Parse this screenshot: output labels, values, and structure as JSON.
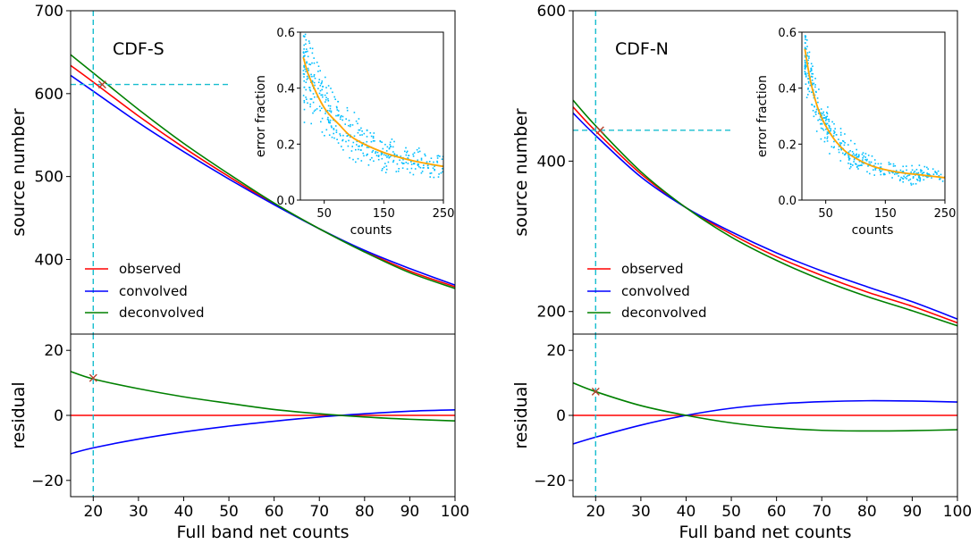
{
  "chart_data": [
    {
      "panel": "CDF-S",
      "type": "line",
      "main": {
        "label": "CDF-S",
        "ylabel": "source number",
        "xlim": [
          15,
          100
        ],
        "ylim": [
          310,
          700
        ],
        "yticks": [
          400,
          500,
          600,
          700
        ],
        "series": [
          {
            "name": "observed",
            "color": "#ff0000",
            "x": [
              15,
              20,
              30,
              40,
              50,
              60,
              70,
              80,
              90,
              100
            ],
            "y": [
              634,
              614,
              573,
              535,
              500,
              467,
              437,
              410,
              386,
              367
            ]
          },
          {
            "name": "convolved",
            "color": "#0000ff",
            "x": [
              15,
              20,
              30,
              40,
              50,
              60,
              70,
              80,
              90,
              100
            ],
            "y": [
              622,
              603,
              565,
              530,
              497,
              466,
              437,
              411,
              389,
              369
            ]
          },
          {
            "name": "deconvolved",
            "color": "#008000",
            "x": [
              15,
              20,
              30,
              40,
              50,
              60,
              70,
              80,
              90,
              100
            ],
            "y": [
              647,
              625,
              581,
              540,
              503,
              468,
              437,
              409,
              384,
              365
            ]
          }
        ],
        "marker": {
          "x": 22,
          "y": 611
        },
        "vline_x": 20,
        "hline": {
          "y": 611,
          "x_from": 15,
          "x_to": 50
        },
        "legend_location": "lower-left"
      },
      "inset": {
        "xlabel": "counts",
        "ylabel": "error fraction",
        "xlim": [
          10,
          250
        ],
        "ylim": [
          0,
          0.6
        ],
        "xticks": [
          50,
          150,
          250
        ],
        "yticks": [
          0.0,
          0.2,
          0.4,
          0.6
        ],
        "fit": {
          "x": [
            15,
            25,
            50,
            75,
            100,
            150,
            200,
            250
          ],
          "y": [
            0.51,
            0.44,
            0.33,
            0.27,
            0.22,
            0.17,
            0.14,
            0.12
          ]
        },
        "scatter_color": "#00bfff",
        "fit_color": "#ffa500"
      },
      "residual": {
        "ylabel": "residual",
        "xlabel": "Full band net counts",
        "xlim": [
          15,
          100
        ],
        "ylim": [
          -25,
          25
        ],
        "yticks": [
          -20,
          0,
          20
        ],
        "xticks": [
          20,
          30,
          40,
          50,
          60,
          70,
          80,
          90,
          100
        ],
        "series": [
          {
            "name": "observed",
            "color": "#ff0000",
            "x": [
              15,
              100
            ],
            "y": [
              0,
              0
            ]
          },
          {
            "name": "convolved",
            "color": "#0000ff",
            "x": [
              15,
              20,
              30,
              40,
              50,
              60,
              70,
              80,
              90,
              100
            ],
            "y": [
              -11.8,
              -10,
              -7.3,
              -5.1,
              -3.3,
              -1.8,
              -0.5,
              0.5,
              1.3,
              1.7
            ]
          },
          {
            "name": "deconvolved",
            "color": "#008000",
            "x": [
              15,
              20,
              30,
              40,
              50,
              60,
              70,
              80,
              90,
              100
            ],
            "y": [
              13.5,
              11.2,
              8.2,
              5.7,
              3.7,
              1.8,
              0.5,
              -0.5,
              -1.2,
              -1.7
            ]
          }
        ],
        "marker": {
          "x": 20,
          "y": 11.5
        },
        "vline_x": 20
      }
    },
    {
      "panel": "CDF-N",
      "type": "line",
      "main": {
        "label": "CDF-N",
        "ylabel": "source number",
        "xlim": [
          15,
          100
        ],
        "ylim": [
          170,
          600
        ],
        "yticks": [
          200,
          400,
          600
        ],
        "series": [
          {
            "name": "observed",
            "color": "#ff0000",
            "x": [
              15,
              20,
              30,
              40,
              50,
              60,
              70,
              80,
              90,
              100
            ],
            "y": [
              472,
              440,
              383,
              338,
              303,
              273,
              248,
              226,
              207,
              185
            ]
          },
          {
            "name": "convolved",
            "color": "#0000ff",
            "x": [
              15,
              20,
              30,
              40,
              50,
              60,
              70,
              80,
              90,
              100
            ],
            "y": [
              464,
              434,
              379,
              338,
              306,
              278,
              254,
              233,
              213,
              190
            ]
          },
          {
            "name": "deconvolved",
            "color": "#008000",
            "x": [
              15,
              20,
              30,
              40,
              50,
              60,
              70,
              80,
              90,
              100
            ],
            "y": [
              481,
              447,
              386,
              338,
              299,
              268,
              242,
              220,
              201,
              181
            ]
          }
        ],
        "marker": {
          "x": 21,
          "y": 441
        },
        "vline_x": 20,
        "hline": {
          "y": 441,
          "x_from": 15,
          "x_to": 50
        },
        "legend_location": "lower-left"
      },
      "inset": {
        "xlabel": "counts",
        "ylabel": "error fraction",
        "xlim": [
          10,
          250
        ],
        "ylim": [
          0,
          0.6
        ],
        "xticks": [
          50,
          150,
          250
        ],
        "yticks": [
          0.0,
          0.2,
          0.4,
          0.6
        ],
        "fit": {
          "x": [
            15,
            25,
            40,
            60,
            80,
            100,
            130,
            170,
            210,
            250
          ],
          "y": [
            0.54,
            0.42,
            0.31,
            0.23,
            0.18,
            0.15,
            0.12,
            0.1,
            0.09,
            0.08
          ]
        },
        "scatter_color": "#00bfff",
        "fit_color": "#ffa500"
      },
      "residual": {
        "ylabel": "residual",
        "xlabel": "Full band net counts",
        "xlim": [
          15,
          100
        ],
        "ylim": [
          -25,
          25
        ],
        "yticks": [
          -20,
          0,
          20
        ],
        "xticks": [
          20,
          30,
          40,
          50,
          60,
          70,
          80,
          90,
          100
        ],
        "series": [
          {
            "name": "observed",
            "color": "#ff0000",
            "x": [
              15,
              100
            ],
            "y": [
              0,
              0
            ]
          },
          {
            "name": "convolved",
            "color": "#0000ff",
            "x": [
              15,
              20,
              30,
              40,
              50,
              60,
              70,
              80,
              90,
              100
            ],
            "y": [
              -8.8,
              -6.7,
              -3,
              0,
              2.2,
              3.5,
              4.2,
              4.5,
              4.4,
              4.1
            ]
          },
          {
            "name": "deconvolved",
            "color": "#008000",
            "x": [
              15,
              20,
              30,
              40,
              50,
              60,
              70,
              80,
              90,
              100
            ],
            "y": [
              10,
              7.3,
              3,
              0,
              -2.3,
              -3.8,
              -4.6,
              -4.8,
              -4.7,
              -4.4
            ]
          }
        ],
        "marker": {
          "x": 20,
          "y": 7.3
        },
        "vline_x": 20
      }
    }
  ]
}
